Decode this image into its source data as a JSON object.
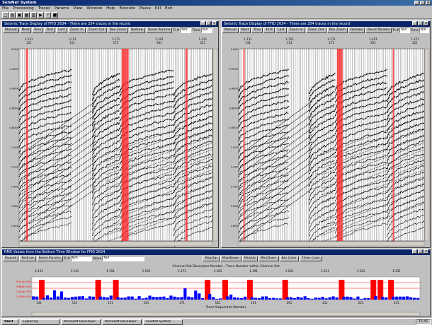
{
  "app": {
    "title": "SeisNet System",
    "menu": [
      "File",
      "Processing",
      "Traces",
      "Params",
      "View",
      "Window",
      "Help",
      "Execute",
      "Pause",
      "Kill",
      "Exit"
    ],
    "toolbar_icons": [
      "new-icon",
      "open-icon",
      "save-icon",
      "print-icon",
      "display-icon",
      "execute-icon",
      "help-icon",
      "stop-icon"
    ]
  },
  "left_panel": {
    "title": "Seismic Trace Display of FFID 2634 - There are 254 traces in the record",
    "buttons": [
      "Manual",
      "Next",
      "Prev",
      "First",
      "Last",
      "Zoom In",
      "Zoom Out",
      "Box Zoom",
      "Redraw",
      "Reset Params"
    ],
    "trace_label": "Tr.#",
    "trace_value": "N/A",
    "time_label": "Time",
    "time_value": "N/A",
    "top_ticks": [
      {
        "a": "1-131",
        "b": "131"
      },
      {
        "a": "1-151",
        "b": "151"
      },
      {
        "a": "1-171",
        "b": "171"
      },
      {
        "a": "1-201",
        "b": "201"
      },
      {
        "a": "1-221",
        "b": "221"
      }
    ],
    "time_ticks": [
      "0.000",
      "0.2000",
      "0.4000",
      "0.6000",
      "0.8000",
      "1.000",
      "1.200",
      "1.400",
      "1.600",
      "1.800"
    ]
  },
  "right_panel": {
    "title": "Seismic Trace Display of FFID 2634 - There are 254 traces in the record",
    "buttons": [
      "Manual",
      "Next",
      "Prev",
      "First",
      "Last",
      "Zoom In",
      "Zoom Out",
      "Box Zoom",
      "Redraw",
      "Reset Params"
    ],
    "trace_label": "Tr.#",
    "trace_value": "N/A",
    "time_label": "Time",
    "time_value": "N/A",
    "top_ticks": [
      {
        "a": "1-131",
        "b": "131"
      },
      {
        "a": "1-151",
        "b": "151"
      },
      {
        "a": "1-171",
        "b": "171"
      },
      {
        "a": "1-201",
        "b": "201"
      },
      {
        "a": "1-221",
        "b": "221"
      }
    ],
    "time_ticks": [
      "0.000",
      "0.2000",
      "0.4000",
      "0.6000",
      "0.8000",
      "1.000",
      "1.200",
      "1.400",
      "1.600",
      "1.800"
    ]
  },
  "rms_panel": {
    "title": "RMS Values from the Bottom Time Window for FFID 2634",
    "buttons": [
      "Paused",
      "Redraw",
      "Reset Params"
    ],
    "trace_label": "Tr.#",
    "trace_value": "N/A",
    "value_label": "Value",
    "value_value": "N/A",
    "right_buttons": [
      "Max/Up",
      "Max/Down",
      "Min/Up",
      "Min/Down",
      "Bar Color",
      "Thres Color"
    ],
    "top_axis_title": "Channel Set Descriptor Number : Trace Number within Channel Set",
    "bottom_axis_title": "Trace Sequential Number",
    "top_ticks": [
      "1-131",
      "1-141",
      "1-151",
      "1-161",
      "1-171",
      "1-181",
      "1-191",
      "1-201",
      "1-211",
      "1-221",
      "1-231"
    ],
    "bottom_ticks": [
      "131",
      "141",
      "151",
      "161",
      "171",
      "181",
      "191",
      "201",
      "211",
      "221",
      "231"
    ],
    "y_ticks": [
      "5.912e+000",
      "3.668e+000",
      "2.414e+000",
      "1.000e+000"
    ]
  },
  "colors": {
    "bar": "#0000ff",
    "threshold": "#ff0000",
    "title_active": "#0a246a"
  },
  "taskbar": {
    "start": "Start",
    "tasks": [
      "Exploring",
      "Microsoft Developer",
      "Microsoft Developer",
      "SeisNet System"
    ],
    "clock": "11:45"
  }
}
